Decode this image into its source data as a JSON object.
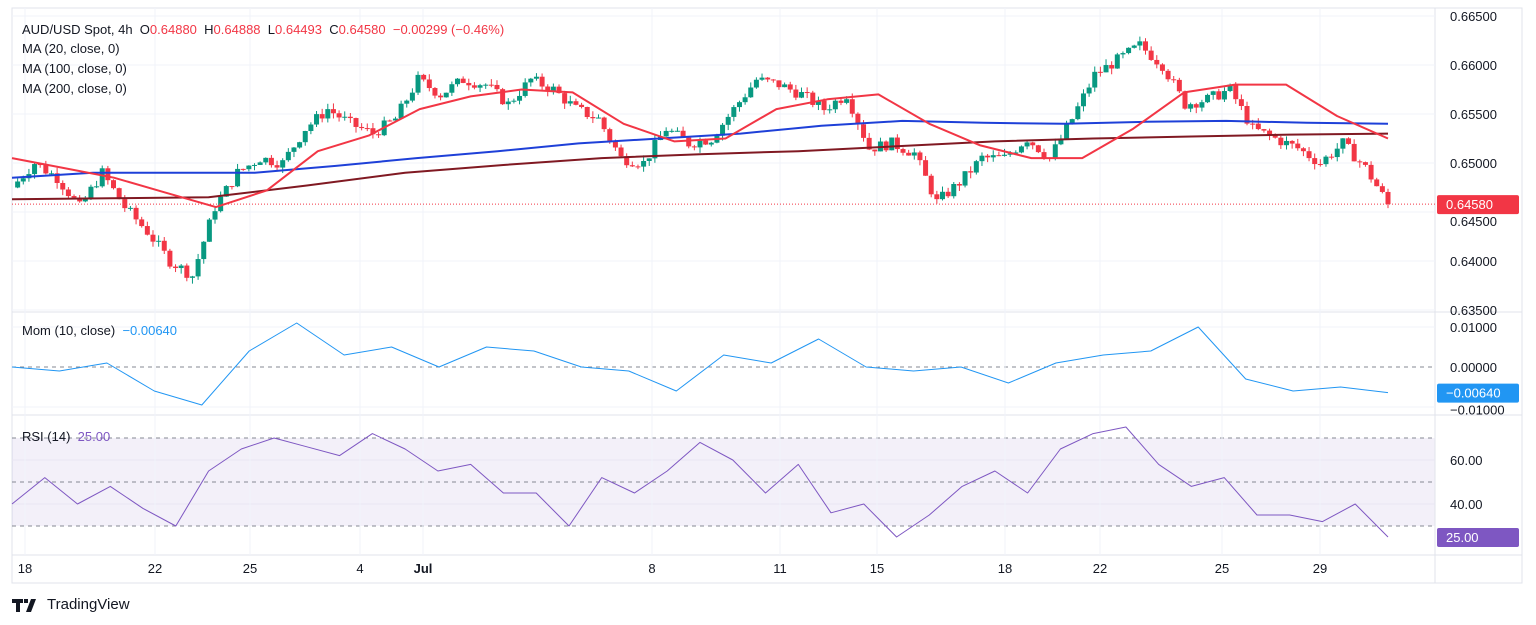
{
  "header": {
    "symbol": "AUD/USD Spot, 4h",
    "open_label": "O",
    "open": "0.64880",
    "high_label": "H",
    "high": "0.64888",
    "low_label": "L",
    "low": "0.64493",
    "close_label": "C",
    "close": "0.64580",
    "change": "−0.00299 (−0.46%)"
  },
  "indicators": {
    "ma20": "MA (20, close, 0)",
    "ma100": "MA (100, close, 0)",
    "ma200": "MA (200, close, 0)",
    "mom": "Mom (10, close)",
    "mom_value": "−0.00640",
    "rsi": "RSI (14)",
    "rsi_value": "25.00"
  },
  "branding": {
    "name": "TradingView"
  },
  "colors": {
    "up": "#089981",
    "down": "#f23645",
    "ma20": "#f23645",
    "ma100": "#1e40d8",
    "ma200": "#801922",
    "mom": "#2196f3",
    "rsi": "#7e57c2"
  },
  "chart_data": [
    {
      "type": "candlestick",
      "title": "AUD/USD Spot, 4h",
      "ylim": [
        0.635,
        0.665
      ],
      "yticks": [
        "0.66500",
        "0.66000",
        "0.65500",
        "0.65000",
        "0.64500",
        "0.64000",
        "0.63500"
      ],
      "xticks": [
        "18",
        "22",
        "25",
        "Jul",
        "4",
        "8",
        "11",
        "15",
        "18",
        "22",
        "25",
        "29"
      ],
      "last_price": "0.64580",
      "closes": [
        0.6475,
        0.65,
        0.6485,
        0.6455,
        0.649,
        0.6455,
        0.643,
        0.64,
        0.6385,
        0.6455,
        0.649,
        0.6505,
        0.65,
        0.6535,
        0.6555,
        0.654,
        0.653,
        0.6545,
        0.6585,
        0.657,
        0.6585,
        0.658,
        0.656,
        0.6585,
        0.6575,
        0.6555,
        0.6545,
        0.6505,
        0.65,
        0.6535,
        0.652,
        0.6525,
        0.6555,
        0.6585,
        0.658,
        0.657,
        0.6555,
        0.657,
        0.6515,
        0.652,
        0.651,
        0.646,
        0.648,
        0.6505,
        0.6505,
        0.6525,
        0.6505,
        0.6545,
        0.659,
        0.6605,
        0.662,
        0.66,
        0.656,
        0.6565,
        0.6575,
        0.6535,
        0.6525,
        0.6515,
        0.65,
        0.652,
        0.6495,
        0.6458
      ],
      "series": [
        {
          "name": "MA (20, close, 0)",
          "values": [
            0.6505,
            0.6495,
            0.6485,
            0.647,
            0.6455,
            0.6472,
            0.6512,
            0.6528,
            0.6555,
            0.6568,
            0.6575,
            0.6572,
            0.654,
            0.6522,
            0.6525,
            0.6555,
            0.6565,
            0.657,
            0.654,
            0.6518,
            0.6505,
            0.6505,
            0.6535,
            0.6572,
            0.658,
            0.658,
            0.6548,
            0.6525
          ]
        },
        {
          "name": "MA (100, close, 0)",
          "values": [
            0.6485,
            0.649,
            0.649,
            0.649,
            0.6497,
            0.6505,
            0.6512,
            0.652,
            0.6525,
            0.653,
            0.6538,
            0.6543,
            0.6541,
            0.654,
            0.6542,
            0.6543,
            0.6541,
            0.654
          ]
        },
        {
          "name": "MA (200, close, 0)",
          "values": [
            0.6463,
            0.6464,
            0.6465,
            0.6477,
            0.649,
            0.6498,
            0.6505,
            0.6509,
            0.6512,
            0.6517,
            0.6522,
            0.6525,
            0.6527,
            0.6529,
            0.653
          ]
        }
      ]
    },
    {
      "type": "line",
      "title": "Mom (10, close)",
      "ylim": [
        -0.012,
        0.012
      ],
      "yticks": [
        "0.01000",
        "0.00000",
        "−0.01000"
      ],
      "last_value": "−0.00640",
      "values": [
        0.0,
        -0.001,
        0.001,
        -0.006,
        -0.0095,
        0.004,
        0.011,
        0.003,
        0.005,
        0.0,
        0.005,
        0.004,
        0.0,
        -0.001,
        -0.006,
        0.003,
        0.001,
        0.007,
        0.0,
        -0.001,
        0.0,
        -0.004,
        0.001,
        0.003,
        0.004,
        0.01,
        -0.003,
        -0.006,
        -0.005,
        -0.0064
      ]
    },
    {
      "type": "line",
      "title": "RSI (14)",
      "ylim": [
        20,
        78
      ],
      "yticks": [
        "60.00",
        "40.00"
      ],
      "bands": [
        30,
        50,
        70
      ],
      "last_value": "25.00",
      "values": [
        40,
        52,
        40,
        48,
        38,
        30,
        55,
        65,
        70,
        66,
        62,
        72,
        65,
        55,
        58,
        45,
        45,
        30,
        52,
        45,
        55,
        68,
        60,
        45,
        58,
        36,
        40,
        25,
        35,
        48,
        55,
        45,
        65,
        72,
        75,
        58,
        48,
        52,
        35,
        35,
        32,
        40,
        25
      ]
    }
  ]
}
